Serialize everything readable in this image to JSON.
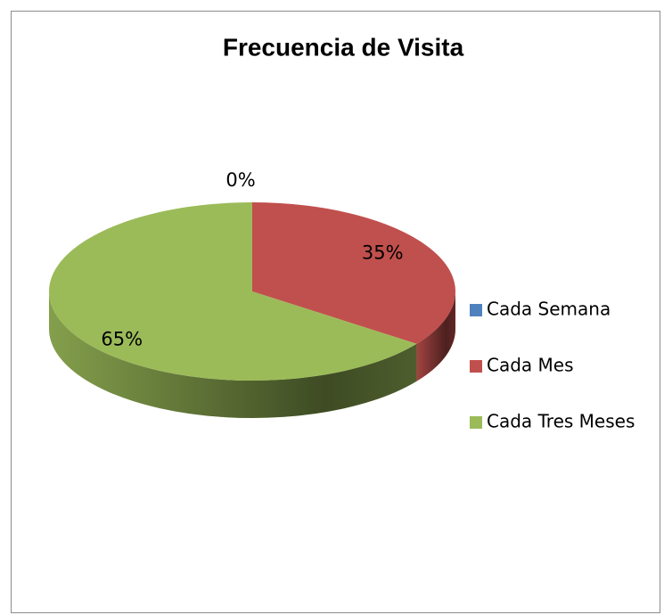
{
  "chart_data": {
    "type": "pie",
    "title": "Frecuencia de Visita",
    "categories": [
      "Cada Semana",
      "Cada Mes",
      "Cada Tres Meses"
    ],
    "values": [
      0,
      35,
      65
    ],
    "value_labels": [
      "0%",
      "35%",
      "65%"
    ],
    "colors": [
      "#4f81bd",
      "#c0504d",
      "#9bbb59"
    ],
    "legend": "right"
  }
}
